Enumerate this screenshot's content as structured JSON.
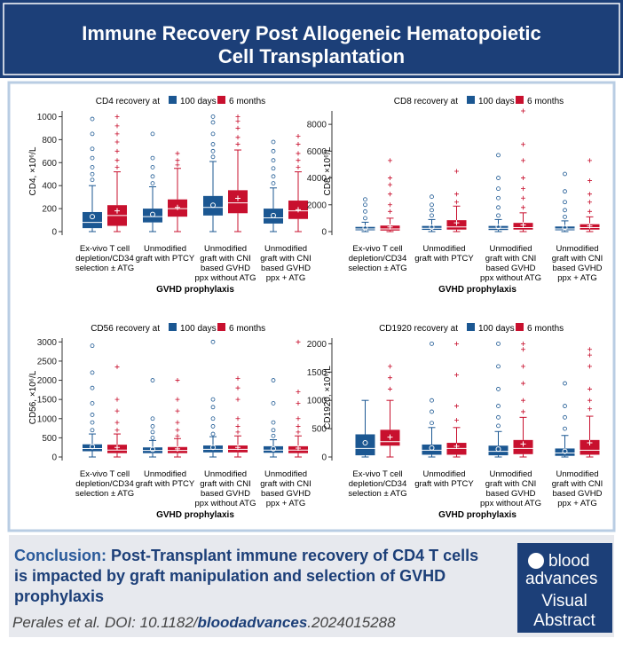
{
  "header": {
    "title": [
      "Immune Recovery Post Allogeneic Hematopoietic",
      "Cell Transplantation"
    ]
  },
  "chart_data": [
    {
      "type": "box",
      "title": "CD4 recovery at",
      "y_label": "CD4, ×10⁶/L",
      "x_label": "GVHD prophylaxis",
      "categories": [
        [
          "Ex-vivo T cell",
          "depletion/CD34",
          "selection ± ATG"
        ],
        [
          "Unmodified",
          "graft with PTCY"
        ],
        [
          "Unmodified",
          "graft with CNI",
          "based GVHD",
          "ppx without ATG"
        ],
        [
          "Unmodified",
          "graft with CNI",
          "based GVHD",
          "ppx + ATG"
        ]
      ],
      "ylim": [
        0,
        1050
      ],
      "yticks": [
        0,
        200,
        400,
        600,
        800,
        1000
      ],
      "series": [
        {
          "name": "100 days",
          "color": "#1b5792",
          "boxes": [
            {
              "min": 0,
              "q1": 30,
              "median": 80,
              "q3": 170,
              "max": 400,
              "mean": 130,
              "outliers": [
                450,
                500,
                560,
                640,
                720,
                850,
                980
              ]
            },
            {
              "min": 0,
              "q1": 80,
              "median": 130,
              "q3": 200,
              "max": 390,
              "mean": 150,
              "outliers": [
                420,
                480,
                560,
                640,
                850
              ]
            },
            {
              "min": 0,
              "q1": 140,
              "median": 210,
              "q3": 310,
              "max": 610,
              "mean": 230,
              "outliers": [
                650,
                700,
                760,
                850,
                950,
                1000
              ]
            },
            {
              "min": 0,
              "q1": 70,
              "median": 120,
              "q3": 200,
              "max": 380,
              "mean": 140,
              "outliers": [
                420,
                480,
                550,
                620,
                700,
                780
              ]
            }
          ]
        },
        {
          "name": "6 months",
          "color": "#c8102e",
          "boxes": [
            {
              "min": 0,
              "q1": 50,
              "median": 140,
              "q3": 230,
              "max": 520,
              "mean": 180,
              "outliers": [
                560,
                620,
                700,
                780,
                850,
                920,
                1000
              ]
            },
            {
              "min": 0,
              "q1": 130,
              "median": 200,
              "q3": 280,
              "max": 550,
              "mean": 210,
              "outliers": [
                580,
                620,
                680
              ]
            },
            {
              "min": 0,
              "q1": 160,
              "median": 250,
              "q3": 360,
              "max": 710,
              "mean": 290,
              "outliers": [
                760,
                820,
                900,
                960,
                1000
              ]
            },
            {
              "min": 0,
              "q1": 110,
              "median": 180,
              "q3": 270,
              "max": 520,
              "mean": 190,
              "outliers": [
                560,
                620,
                680,
                760,
                830
              ]
            }
          ]
        }
      ]
    },
    {
      "type": "box",
      "title": "CD8 recovery at",
      "y_label": "CD8, ×10⁶/L",
      "x_label": "GVHD prophylaxis",
      "categories": [
        [
          "Ex-vivo T cell",
          "depletion/CD34",
          "selection ± ATG"
        ],
        [
          "Unmodified",
          "graft with PTCY"
        ],
        [
          "Unmodified",
          "graft with CNI",
          "based GVHD",
          "ppx without ATG"
        ],
        [
          "Unmodified",
          "graft with CNI",
          "based GVHD",
          "ppx + ATG"
        ]
      ],
      "ylim": [
        0,
        9000
      ],
      "yticks": [
        0,
        2000,
        4000,
        6000,
        8000
      ],
      "series": [
        {
          "name": "100 days",
          "color": "#1b5792",
          "boxes": [
            {
              "min": 0,
              "q1": 100,
              "median": 200,
              "q3": 350,
              "max": 700,
              "mean": 280,
              "outliers": [
                1000,
                1500,
                2000,
                2400
              ]
            },
            {
              "min": 0,
              "q1": 130,
              "median": 250,
              "q3": 420,
              "max": 900,
              "mean": 330,
              "outliers": [
                1200,
                1600,
                2000,
                2600
              ]
            },
            {
              "min": 0,
              "q1": 120,
              "median": 250,
              "q3": 420,
              "max": 900,
              "mean": 360,
              "outliers": [
                1200,
                1800,
                2500,
                3200,
                4000,
                5700
              ]
            },
            {
              "min": 0,
              "q1": 100,
              "median": 200,
              "q3": 380,
              "max": 800,
              "mean": 300,
              "outliers": [
                1100,
                1600,
                2200,
                3000,
                4300
              ]
            }
          ]
        },
        {
          "name": "6 months",
          "color": "#c8102e",
          "boxes": [
            {
              "min": 0,
              "q1": 80,
              "median": 200,
              "q3": 450,
              "max": 1000,
              "mean": 350,
              "outliers": [
                1500,
                2000,
                2800,
                3500,
                4000,
                5300
              ]
            },
            {
              "min": 0,
              "q1": 150,
              "median": 350,
              "q3": 850,
              "max": 1900,
              "mean": 650,
              "outliers": [
                2200,
                2800,
                4500
              ]
            },
            {
              "min": 0,
              "q1": 150,
              "median": 300,
              "q3": 650,
              "max": 1400,
              "mean": 500,
              "outliers": [
                1800,
                2500,
                3200,
                4000,
                5300,
                6500,
                9000
              ]
            },
            {
              "min": 0,
              "q1": 150,
              "median": 300,
              "q3": 550,
              "max": 1100,
              "mean": 420,
              "outliers": [
                1500,
                2200,
                2800,
                3800,
                5300
              ]
            }
          ]
        }
      ]
    },
    {
      "type": "box",
      "title": "CD56 recovery at",
      "y_label": "CD56, ×10⁶/L",
      "x_label": "GVHD prophylaxis",
      "categories": [
        [
          "Ex-vivo T cell",
          "depletion/CD34",
          "selection ± ATG"
        ],
        [
          "Unmodified",
          "graft with PTCY"
        ],
        [
          "Unmodified",
          "graft with CNI",
          "based GVHD",
          "ppx without ATG"
        ],
        [
          "Unmodified",
          "graft with CNI",
          "based GVHD",
          "ppx + ATG"
        ]
      ],
      "ylim": [
        0,
        3100
      ],
      "yticks": [
        0,
        500,
        1000,
        1500,
        2000,
        2500,
        3000
      ],
      "series": [
        {
          "name": "100 days",
          "color": "#1b5792",
          "boxes": [
            {
              "min": 0,
              "q1": 150,
              "median": 220,
              "q3": 330,
              "max": 600,
              "mean": 270,
              "outliers": [
                700,
                900,
                1100,
                1400,
                1800,
                2200,
                2900
              ]
            },
            {
              "min": 0,
              "q1": 100,
              "median": 170,
              "q3": 250,
              "max": 430,
              "mean": 200,
              "outliers": [
                500,
                650,
                800,
                1000,
                2000
              ]
            },
            {
              "min": 0,
              "q1": 120,
              "median": 200,
              "q3": 300,
              "max": 530,
              "mean": 250,
              "outliers": [
                600,
                800,
                1000,
                1300,
                1500,
                3000
              ]
            },
            {
              "min": 0,
              "q1": 110,
              "median": 180,
              "q3": 280,
              "max": 450,
              "mean": 210,
              "outliers": [
                550,
                700,
                900,
                1400,
                2000
              ]
            }
          ]
        },
        {
          "name": "6 months",
          "color": "#c8102e",
          "boxes": [
            {
              "min": 0,
              "q1": 100,
              "median": 180,
              "q3": 320,
              "max": 600,
              "mean": 250,
              "outliers": [
                700,
                900,
                1200,
                1500,
                2350
              ]
            },
            {
              "min": 0,
              "q1": 100,
              "median": 170,
              "q3": 260,
              "max": 480,
              "mean": 210,
              "outliers": [
                550,
                700,
                900,
                1200,
                1500,
                2000
              ]
            },
            {
              "min": 0,
              "q1": 120,
              "median": 200,
              "q3": 300,
              "max": 550,
              "mean": 250,
              "outliers": [
                650,
                800,
                1000,
                1500,
                1800,
                2050
              ]
            },
            {
              "min": 0,
              "q1": 100,
              "median": 180,
              "q3": 280,
              "max": 550,
              "mean": 230,
              "outliers": [
                650,
                800,
                1000,
                1400,
                1700,
                3000
              ]
            }
          ]
        }
      ]
    },
    {
      "type": "box",
      "title": "CD1920 recovery at",
      "y_label": "CD1920, ×10⁶/L",
      "x_label": "GVHD prophylaxis",
      "categories": [
        [
          "Ex-vivo T cell",
          "depletion/CD34",
          "selection ± ATG"
        ],
        [
          "Unmodified",
          "graft with PTCY"
        ],
        [
          "Unmodified",
          "graft with CNI",
          "based GVHD",
          "ppx without ATG"
        ],
        [
          "Unmodified",
          "graft with CNI",
          "based GVHD",
          "ppx + ATG"
        ]
      ],
      "ylim": [
        0,
        2100
      ],
      "yticks": [
        0,
        500,
        1000,
        1500,
        2000
      ],
      "series": [
        {
          "name": "100 days",
          "color": "#1b5792",
          "boxes": [
            {
              "min": 0,
              "q1": 30,
              "median": 150,
              "q3": 400,
              "max": 1000,
              "mean": 250,
              "outliers": []
            },
            {
              "min": 0,
              "q1": 40,
              "median": 120,
              "q3": 220,
              "max": 520,
              "mean": 160,
              "outliers": [
                600,
                800,
                1000,
                2000
              ]
            },
            {
              "min": 0,
              "q1": 30,
              "median": 100,
              "q3": 200,
              "max": 450,
              "mean": 140,
              "outliers": [
                550,
                700,
                900,
                1200,
                1600,
                2000
              ]
            },
            {
              "min": 0,
              "q1": 20,
              "median": 70,
              "q3": 150,
              "max": 380,
              "mean": 100,
              "outliers": [
                500,
                700,
                900,
                1300
              ]
            }
          ]
        },
        {
          "name": "6 months",
          "color": "#c8102e",
          "boxes": [
            {
              "min": 0,
              "q1": 200,
              "median": 270,
              "q3": 480,
              "max": 1000,
              "mean": 350,
              "outliers": [
                1200,
                1400,
                1600
              ]
            },
            {
              "min": 0,
              "q1": 40,
              "median": 150,
              "q3": 250,
              "max": 520,
              "mean": 190,
              "outliers": [
                650,
                900,
                1450,
                2000
              ]
            },
            {
              "min": 0,
              "q1": 50,
              "median": 150,
              "q3": 300,
              "max": 700,
              "mean": 230,
              "outliers": [
                800,
                1000,
                1300,
                1600,
                1900,
                2000
              ]
            },
            {
              "min": 0,
              "q1": 40,
              "median": 120,
              "q3": 300,
              "max": 720,
              "mean": 250,
              "outliers": [
                850,
                1000,
                1200,
                1600,
                1800,
                1900
              ]
            }
          ]
        }
      ]
    }
  ],
  "conclusion": {
    "label": "Conclusion:",
    "lines": [
      "Post-Transplant immune recovery of CD4 T cells",
      "is impacted by graft manipulation and selection of GVHD",
      "prophylaxis"
    ]
  },
  "citation": {
    "prefix": "Perales et al. DOI: 10.1182/",
    "journal": "bloodadvances",
    "suffix": ".2024015288"
  },
  "logo": [
    "blood",
    "advances",
    "Visual",
    "Abstract"
  ]
}
